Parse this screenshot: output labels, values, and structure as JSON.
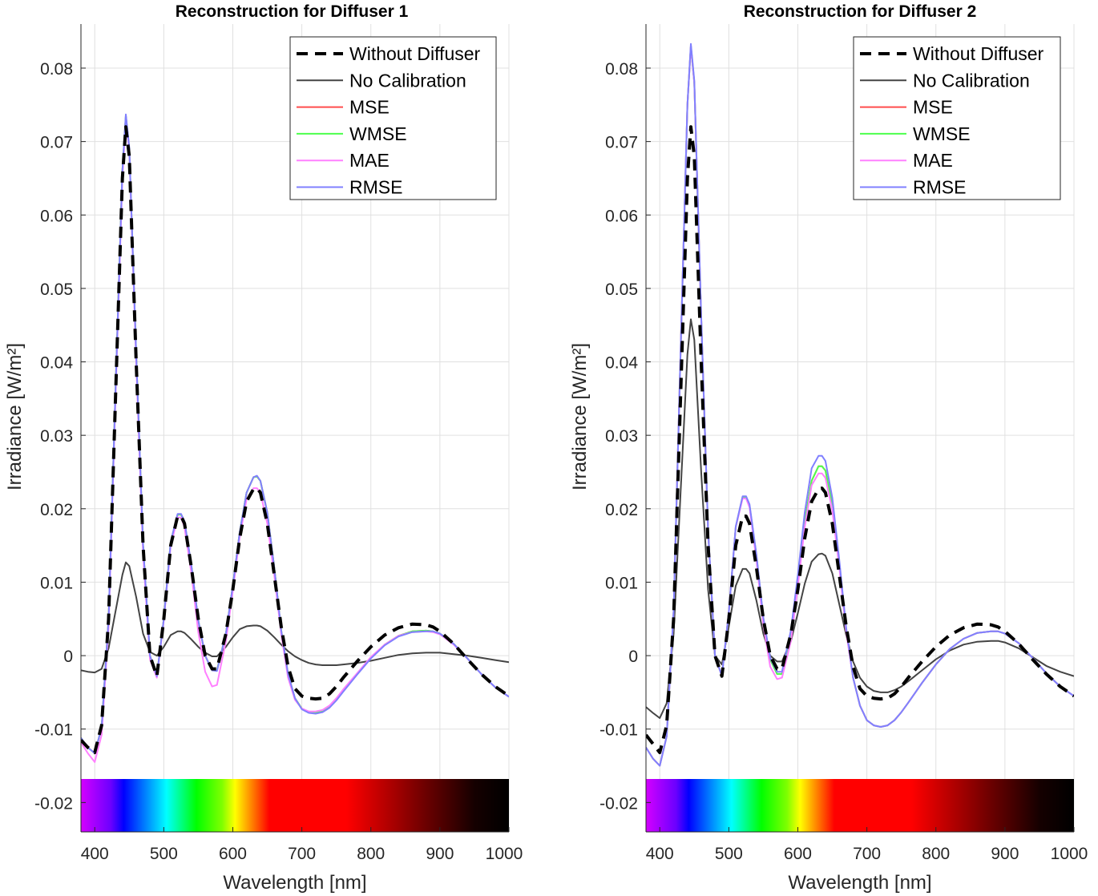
{
  "colors": {
    "without_diffuser": "#000000",
    "no_calibration": "#444444",
    "mse": "#ff4d4d",
    "wmse": "#4dff4d",
    "mae": "#ff80ff",
    "rmse": "#8080ff"
  },
  "legend_entries": [
    "Without Diffuser",
    "No Calibration",
    "MSE",
    "WMSE",
    "MAE",
    "RMSE"
  ],
  "chart_data": [
    {
      "type": "line",
      "title": "Reconstruction for Diffuser 1",
      "xlabel": "Wavelength [nm]",
      "ylabel": "Irradiance [W/m²]",
      "xlim": [
        380,
        1000
      ],
      "ylim": [
        -0.024,
        0.086
      ],
      "xticks": [
        "400",
        "500",
        "600",
        "700",
        "800",
        "900",
        "1000"
      ],
      "yticks": [
        "-0.02",
        "-0.01",
        "0",
        "0.01",
        "0.02",
        "0.03",
        "0.04",
        "0.05",
        "0.06",
        "0.07",
        "0.08"
      ],
      "grid": true,
      "legend_position": "top-right",
      "colorbar": "visible spectrum strip along the bottom of the axes",
      "x": [
        380,
        390,
        400,
        410,
        420,
        430,
        440,
        445,
        450,
        460,
        470,
        480,
        490,
        500,
        510,
        520,
        525,
        530,
        540,
        550,
        560,
        570,
        577,
        590,
        600,
        610,
        620,
        630,
        635,
        640,
        650,
        660,
        670,
        680,
        690,
        700,
        710,
        720,
        730,
        740,
        750,
        760,
        780,
        800,
        820,
        840,
        860,
        880,
        890,
        900,
        920,
        940,
        960,
        980,
        1000
      ],
      "series": [
        {
          "name": "Without Diffuser",
          "style": "dashed",
          "values": [
            -0.0115,
            -0.0125,
            -0.0132,
            -0.0095,
            0.005,
            0.035,
            0.065,
            0.072,
            0.068,
            0.04,
            0.015,
            0.0,
            -0.0028,
            0.005,
            0.015,
            0.019,
            0.019,
            0.018,
            0.012,
            0.005,
            0.0,
            -0.0018,
            -0.0018,
            0.003,
            0.009,
            0.016,
            0.021,
            0.0227,
            0.0228,
            0.0222,
            0.018,
            0.011,
            0.004,
            -0.0015,
            -0.0045,
            -0.0055,
            -0.0058,
            -0.0059,
            -0.0058,
            -0.0052,
            -0.0042,
            -0.003,
            -0.0008,
            0.0012,
            0.0028,
            0.0038,
            0.0043,
            0.0042,
            0.0039,
            0.0033,
            0.0016,
            -0.0005,
            -0.0025,
            -0.0042,
            -0.0055
          ]
        },
        {
          "name": "No Calibration",
          "style": "solid",
          "values": [
            -0.002,
            -0.0022,
            -0.0023,
            -0.0018,
            0.001,
            0.006,
            0.011,
            0.0127,
            0.0122,
            0.008,
            0.003,
            0.0005,
            0.0,
            0.0012,
            0.0028,
            0.0033,
            0.0033,
            0.0031,
            0.0022,
            0.0012,
            0.0004,
            -0.0001,
            -0.0001,
            0.0012,
            0.0025,
            0.0036,
            0.004,
            0.0041,
            0.0041,
            0.004,
            0.0034,
            0.0025,
            0.0015,
            0.0006,
            -0.0001,
            -0.0006,
            -0.001,
            -0.0012,
            -0.0013,
            -0.0013,
            -0.0013,
            -0.0012,
            -0.001,
            -0.0007,
            -0.0003,
            0.0001,
            0.0003,
            0.0004,
            0.0004,
            0.0004,
            0.0002,
            0.0,
            -0.0003,
            -0.0006,
            -0.0009
          ]
        },
        {
          "name": "MSE",
          "style": "solid",
          "values": [
            -0.0112,
            -0.0125,
            -0.0133,
            -0.0098,
            0.005,
            0.036,
            0.066,
            0.0735,
            0.069,
            0.041,
            0.015,
            0.0,
            -0.0028,
            0.005,
            0.0155,
            0.0192,
            0.0192,
            0.0182,
            0.0122,
            0.0048,
            0.0,
            -0.002,
            -0.002,
            0.003,
            0.0095,
            0.0168,
            0.0222,
            0.0243,
            0.0244,
            0.0238,
            0.0195,
            0.012,
            0.0035,
            -0.0025,
            -0.0058,
            -0.0072,
            -0.0077,
            -0.0078,
            -0.0076,
            -0.007,
            -0.006,
            -0.0048,
            -0.0025,
            -0.0003,
            0.0015,
            0.0027,
            0.0033,
            0.0034,
            0.0033,
            0.003,
            0.0016,
            -0.0004,
            -0.0025,
            -0.0043,
            -0.0056
          ]
        },
        {
          "name": "WMSE",
          "style": "solid",
          "values": [
            -0.0112,
            -0.0125,
            -0.0133,
            -0.0098,
            0.005,
            0.036,
            0.066,
            0.0735,
            0.069,
            0.041,
            0.015,
            0.0,
            -0.0028,
            0.005,
            0.0155,
            0.0192,
            0.0192,
            0.0182,
            0.0122,
            0.0048,
            0.0,
            -0.002,
            -0.002,
            0.003,
            0.0095,
            0.0168,
            0.0222,
            0.0243,
            0.0244,
            0.0238,
            0.0195,
            0.012,
            0.0035,
            -0.0025,
            -0.0058,
            -0.0072,
            -0.0077,
            -0.0078,
            -0.0076,
            -0.007,
            -0.006,
            -0.0048,
            -0.0025,
            -0.0003,
            0.0015,
            0.0027,
            0.0033,
            0.0034,
            0.0033,
            0.003,
            0.0016,
            -0.0004,
            -0.0025,
            -0.0043,
            -0.0056
          ]
        },
        {
          "name": "MAE",
          "style": "solid",
          "values": [
            -0.0118,
            -0.0133,
            -0.0145,
            -0.0108,
            0.004,
            0.035,
            0.065,
            0.0732,
            0.0688,
            0.04,
            0.014,
            -0.0005,
            -0.003,
            0.0048,
            0.015,
            0.0188,
            0.0188,
            0.0175,
            0.0112,
            0.0032,
            -0.0022,
            -0.0042,
            -0.004,
            0.002,
            0.0088,
            0.0162,
            0.0213,
            0.0228,
            0.0228,
            0.0222,
            0.018,
            0.011,
            0.003,
            -0.003,
            -0.006,
            -0.0072,
            -0.0076,
            -0.0076,
            -0.0074,
            -0.0068,
            -0.0058,
            -0.0046,
            -0.0024,
            -0.0002,
            0.0015,
            0.0027,
            0.0032,
            0.0033,
            0.0032,
            0.0029,
            0.0015,
            -0.0004,
            -0.0025,
            -0.0043,
            -0.0056
          ]
        },
        {
          "name": "RMSE",
          "style": "solid",
          "values": [
            -0.0112,
            -0.0125,
            -0.0133,
            -0.0098,
            0.005,
            0.036,
            0.066,
            0.0737,
            0.0692,
            0.0412,
            0.0152,
            0.0,
            -0.0028,
            0.005,
            0.0155,
            0.0193,
            0.0193,
            0.0183,
            0.0123,
            0.0048,
            0.0,
            -0.002,
            -0.0021,
            0.003,
            0.0095,
            0.0168,
            0.0222,
            0.0243,
            0.0245,
            0.0238,
            0.0195,
            0.012,
            0.0035,
            -0.0025,
            -0.0058,
            -0.0073,
            -0.0078,
            -0.0079,
            -0.0077,
            -0.0071,
            -0.0061,
            -0.0049,
            -0.0026,
            -0.0004,
            0.0014,
            0.0026,
            0.0032,
            0.0033,
            0.0033,
            0.003,
            0.0016,
            -0.0004,
            -0.0025,
            -0.0043,
            -0.0056
          ]
        }
      ]
    },
    {
      "type": "line",
      "title": "Reconstruction for Diffuser 2",
      "xlabel": "Wavelength [nm]",
      "ylabel": "Irradiance [W/m²]",
      "xlim": [
        380,
        1000
      ],
      "ylim": [
        -0.024,
        0.086
      ],
      "xticks": [
        "400",
        "500",
        "600",
        "700",
        "800",
        "900",
        "1000"
      ],
      "yticks": [
        "-0.02",
        "-0.01",
        "0",
        "0.01",
        "0.02",
        "0.03",
        "0.04",
        "0.05",
        "0.06",
        "0.07",
        "0.08"
      ],
      "grid": true,
      "legend_position": "top-right",
      "colorbar": "visible spectrum strip along the bottom of the axes",
      "x": [
        380,
        390,
        400,
        410,
        420,
        430,
        440,
        445,
        450,
        460,
        470,
        480,
        490,
        500,
        510,
        520,
        525,
        530,
        540,
        550,
        560,
        570,
        577,
        590,
        600,
        610,
        620,
        630,
        635,
        640,
        650,
        660,
        670,
        680,
        690,
        700,
        710,
        720,
        730,
        740,
        750,
        760,
        780,
        800,
        820,
        840,
        860,
        880,
        890,
        900,
        920,
        940,
        960,
        980,
        1000
      ],
      "series": [
        {
          "name": "Without Diffuser",
          "style": "dashed",
          "values": [
            -0.0108,
            -0.012,
            -0.0132,
            -0.0095,
            0.005,
            0.035,
            0.065,
            0.072,
            0.068,
            0.04,
            0.015,
            0.0,
            -0.0028,
            0.005,
            0.015,
            0.019,
            0.019,
            0.018,
            0.012,
            0.005,
            0.0,
            -0.0018,
            -0.0018,
            0.003,
            0.009,
            0.016,
            0.021,
            0.0227,
            0.0228,
            0.0222,
            0.018,
            0.011,
            0.004,
            -0.0015,
            -0.0045,
            -0.0055,
            -0.0058,
            -0.0059,
            -0.0058,
            -0.0052,
            -0.0042,
            -0.003,
            -0.0008,
            0.0012,
            0.0028,
            0.0038,
            0.0043,
            0.0042,
            0.0039,
            0.0033,
            0.0016,
            -0.0005,
            -0.0025,
            -0.0042,
            -0.0055
          ]
        },
        {
          "name": "No Calibration",
          "style": "solid",
          "values": [
            -0.007,
            -0.0078,
            -0.0085,
            -0.0065,
            0.003,
            0.022,
            0.041,
            0.0458,
            0.043,
            0.025,
            0.009,
            0.0,
            -0.0012,
            0.004,
            0.0095,
            0.0118,
            0.0118,
            0.0112,
            0.0075,
            0.003,
            0.0,
            -0.0008,
            -0.0008,
            0.002,
            0.0058,
            0.0098,
            0.0128,
            0.0138,
            0.0139,
            0.0136,
            0.0112,
            0.007,
            0.0028,
            -0.0008,
            -0.003,
            -0.0042,
            -0.0048,
            -0.005,
            -0.005,
            -0.0047,
            -0.0042,
            -0.0035,
            -0.002,
            -0.0005,
            0.0007,
            0.0015,
            0.0019,
            0.002,
            0.002,
            0.0018,
            0.001,
            -0.0002,
            -0.0014,
            -0.0022,
            -0.0028
          ]
        },
        {
          "name": "MSE",
          "style": "solid",
          "values": [
            -0.0125,
            -0.014,
            -0.015,
            -0.011,
            0.006,
            0.041,
            0.075,
            0.083,
            0.078,
            0.046,
            0.017,
            0.0,
            -0.0028,
            0.006,
            0.0175,
            0.0216,
            0.0216,
            0.0204,
            0.0136,
            0.005,
            -0.0005,
            -0.0025,
            -0.0025,
            0.003,
            0.0102,
            0.0182,
            0.0238,
            0.0258,
            0.0258,
            0.0252,
            0.0205,
            0.0125,
            0.0035,
            -0.003,
            -0.0068,
            -0.0088,
            -0.0095,
            -0.0097,
            -0.0095,
            -0.0088,
            -0.0077,
            -0.0064,
            -0.0037,
            -0.0012,
            0.0009,
            0.0023,
            0.0031,
            0.0033,
            0.0033,
            0.003,
            0.0017,
            -0.0003,
            -0.0024,
            -0.0042,
            -0.0055
          ]
        },
        {
          "name": "WMSE",
          "style": "solid",
          "values": [
            -0.0125,
            -0.014,
            -0.015,
            -0.011,
            0.006,
            0.041,
            0.075,
            0.083,
            0.078,
            0.046,
            0.017,
            0.0,
            -0.0028,
            0.006,
            0.0175,
            0.0216,
            0.0216,
            0.0204,
            0.0136,
            0.005,
            -0.0005,
            -0.0025,
            -0.0025,
            0.003,
            0.0102,
            0.0182,
            0.0238,
            0.0258,
            0.0258,
            0.0252,
            0.0205,
            0.0125,
            0.0035,
            -0.003,
            -0.0068,
            -0.0088,
            -0.0095,
            -0.0097,
            -0.0095,
            -0.0088,
            -0.0077,
            -0.0064,
            -0.0037,
            -0.0012,
            0.0009,
            0.0023,
            0.0031,
            0.0033,
            0.0033,
            0.003,
            0.0017,
            -0.0003,
            -0.0024,
            -0.0042,
            -0.0055
          ]
        },
        {
          "name": "MAE",
          "style": "solid",
          "values": [
            -0.0125,
            -0.014,
            -0.015,
            -0.011,
            0.006,
            0.041,
            0.075,
            0.083,
            0.078,
            0.046,
            0.017,
            0.0,
            -0.0028,
            0.006,
            0.0175,
            0.0214,
            0.0214,
            0.0202,
            0.013,
            0.0042,
            -0.0015,
            -0.0032,
            -0.003,
            0.002,
            0.0095,
            0.0175,
            0.0232,
            0.0248,
            0.0248,
            0.0242,
            0.0198,
            0.012,
            0.0032,
            -0.003,
            -0.0068,
            -0.0088,
            -0.0095,
            -0.0097,
            -0.0095,
            -0.0088,
            -0.0077,
            -0.0064,
            -0.0037,
            -0.0012,
            0.0009,
            0.0023,
            0.0031,
            0.0033,
            0.0033,
            0.003,
            0.0017,
            -0.0003,
            -0.0024,
            -0.0042,
            -0.0055
          ]
        },
        {
          "name": "RMSE",
          "style": "solid",
          "values": [
            -0.0125,
            -0.014,
            -0.015,
            -0.011,
            0.006,
            0.041,
            0.075,
            0.0833,
            0.0783,
            0.0463,
            0.0172,
            0.0,
            -0.0028,
            0.006,
            0.0176,
            0.0217,
            0.0217,
            0.0206,
            0.0138,
            0.0052,
            -0.0003,
            -0.0022,
            -0.0022,
            0.0035,
            0.011,
            0.0195,
            0.0255,
            0.0272,
            0.0272,
            0.0265,
            0.0215,
            0.013,
            0.0038,
            -0.003,
            -0.0068,
            -0.0088,
            -0.0095,
            -0.0097,
            -0.0095,
            -0.0088,
            -0.0077,
            -0.0064,
            -0.0037,
            -0.0012,
            0.0009,
            0.0023,
            0.0031,
            0.0033,
            0.0033,
            0.003,
            0.0017,
            -0.0003,
            -0.0024,
            -0.0042,
            -0.0055
          ]
        }
      ]
    }
  ]
}
